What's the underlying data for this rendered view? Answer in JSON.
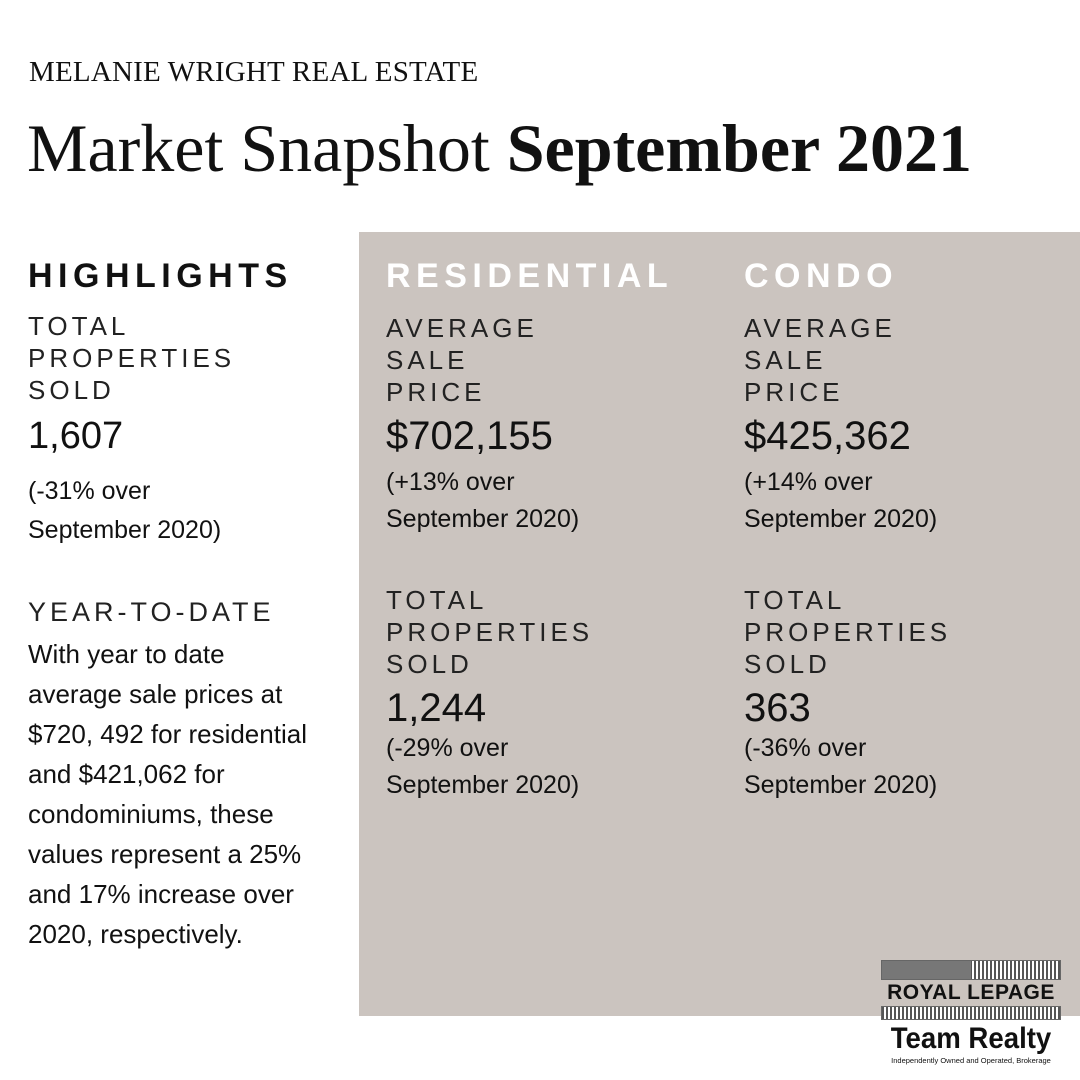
{
  "header": {
    "brand": "MELANIE WRIGHT REAL ESTATE",
    "title_regular": "Market Snapshot ",
    "title_bold": "September 2021"
  },
  "highlights": {
    "heading": "HIGHLIGHTS",
    "total_label_lines": [
      "TOTAL",
      "PROPERTIES",
      "SOLD"
    ],
    "total_value": "1,607",
    "total_change_lines": [
      "(-31% over",
      "September 2020)"
    ],
    "ytd_label": "YEAR-TO-DATE",
    "ytd_text_lines": [
      "With year to date",
      "average sale prices at",
      "$720, 492 for residential",
      "and $421,062 for",
      "condominiums, these",
      "values represent a 25%",
      "and 17% increase over",
      "2020, respectively."
    ]
  },
  "residential": {
    "heading": "RESIDENTIAL",
    "avg_label_lines": [
      "AVERAGE",
      "SALE",
      "PRICE"
    ],
    "avg_value": "$702,155",
    "avg_change_lines": [
      "(+13% over",
      "September 2020)"
    ],
    "total_label_lines": [
      "TOTAL",
      "PROPERTIES",
      "SOLD"
    ],
    "total_value": "1,244",
    "total_change_lines": [
      "(-29% over",
      "September 2020)"
    ]
  },
  "condo": {
    "heading": "CONDO",
    "avg_label_lines": [
      "AVERAGE",
      "SALE",
      "PRICE"
    ],
    "avg_value": "$425,362",
    "avg_change_lines": [
      "(+14% over",
      "September 2020)"
    ],
    "total_label_lines": [
      "TOTAL",
      "PROPERTIES",
      "SOLD"
    ],
    "total_value": "363",
    "total_change_lines": [
      "(-36% over",
      "September 2020)"
    ]
  },
  "logo": {
    "line1": "ROYAL LEPAGE",
    "line2": "Team Realty",
    "tagline": "Independently Owned and Operated, Brokerage"
  },
  "colors": {
    "panel": "#cbc4bf",
    "heading_on_panel": "#ffffff",
    "text": "#111111"
  }
}
